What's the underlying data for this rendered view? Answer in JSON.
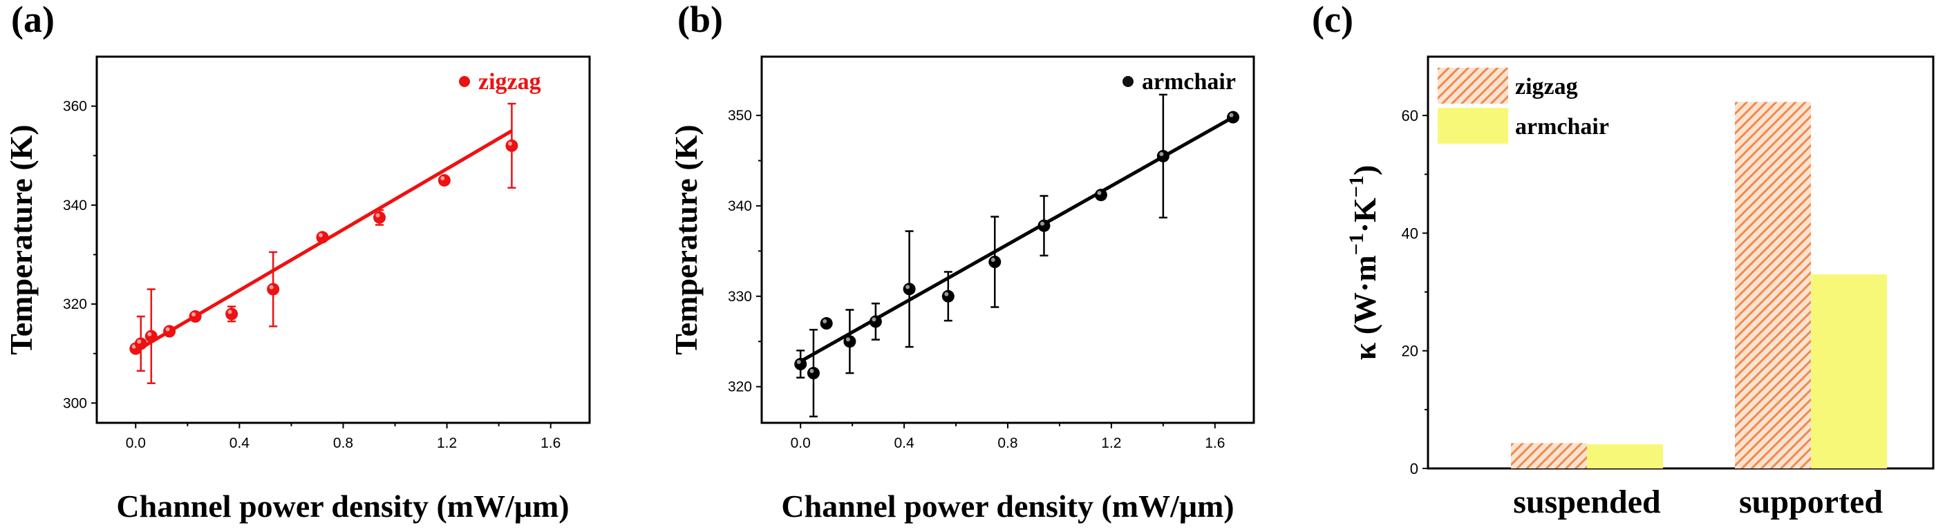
{
  "chart_data": [
    {
      "panel": "(a)",
      "type": "scatter",
      "xlabel": "Channel power density (mW/μm)",
      "ylabel": "Temperature (K)",
      "xlim": [
        -0.15,
        1.75
      ],
      "ylim": [
        296,
        370
      ],
      "xticks": [
        "0.0",
        "0.4",
        "0.8",
        "1.2",
        "1.6"
      ],
      "yticks": [
        "300",
        "320",
        "340",
        "360"
      ],
      "color": "#ee1111",
      "legend": "zigzag",
      "series": [
        {
          "name": "zigzag",
          "x": [
            0.0,
            0.02,
            0.06,
            0.13,
            0.23,
            0.37,
            0.53,
            0.72,
            0.94,
            1.19,
            1.45
          ],
          "y": [
            311,
            312,
            313.5,
            314.5,
            317.5,
            318,
            323,
            333.5,
            337.5,
            345,
            352
          ],
          "err": [
            0.5,
            5.5,
            9.5,
            0.5,
            0.5,
            1.5,
            7.5,
            0.5,
            1.5,
            0.5,
            8.5
          ]
        }
      ],
      "fit": {
        "x": [
          0.0,
          1.45
        ],
        "y": [
          310.5,
          355
        ]
      }
    },
    {
      "panel": "(b)",
      "type": "scatter",
      "xlabel": "Channel power density (mW/μm)",
      "ylabel": "Temperature (K)",
      "xlim": [
        -0.15,
        1.75
      ],
      "ylim": [
        316,
        356.5
      ],
      "xticks": [
        "0.0",
        "0.4",
        "0.8",
        "1.2",
        "1.6"
      ],
      "yticks": [
        "320",
        "330",
        "340",
        "350"
      ],
      "color": "#000000",
      "legend": "armchair",
      "series": [
        {
          "name": "armchair",
          "x": [
            0.0,
            0.05,
            0.1,
            0.19,
            0.29,
            0.42,
            0.57,
            0.75,
            0.94,
            1.16,
            1.4,
            1.67
          ],
          "y": [
            322.5,
            321.5,
            327,
            325,
            327.2,
            330.8,
            330,
            333.8,
            337.8,
            341.2,
            345.5,
            349.8
          ],
          "err": [
            1.5,
            4.8,
            0.3,
            3.5,
            2,
            6.4,
            2.7,
            5,
            3.3,
            0.3,
            6.8,
            0.3
          ]
        }
      ],
      "fit": {
        "x": [
          0.0,
          1.67
        ],
        "y": [
          322.8,
          349.8
        ]
      }
    },
    {
      "panel": "(c)",
      "type": "bar",
      "categories": [
        "suspended",
        "supported"
      ],
      "ylabel": "κ (W·m−1·K−1)",
      "ylabel_main": "κ (W·m",
      "ylabel_sup1": "−1",
      "ylabel_mid": "·K",
      "ylabel_sup2": "−1",
      "ylabel_end": ")",
      "ylim": [
        0,
        70
      ],
      "yticks": [
        "0",
        "20",
        "40",
        "60"
      ],
      "series": [
        {
          "name": "zigzag",
          "values": [
            4.3,
            62.3
          ],
          "color": "#f4a46a",
          "pattern": "hatched"
        },
        {
          "name": "armchair",
          "values": [
            4.1,
            33
          ],
          "color": "#f8f878",
          "pattern": "solid"
        }
      ]
    }
  ]
}
